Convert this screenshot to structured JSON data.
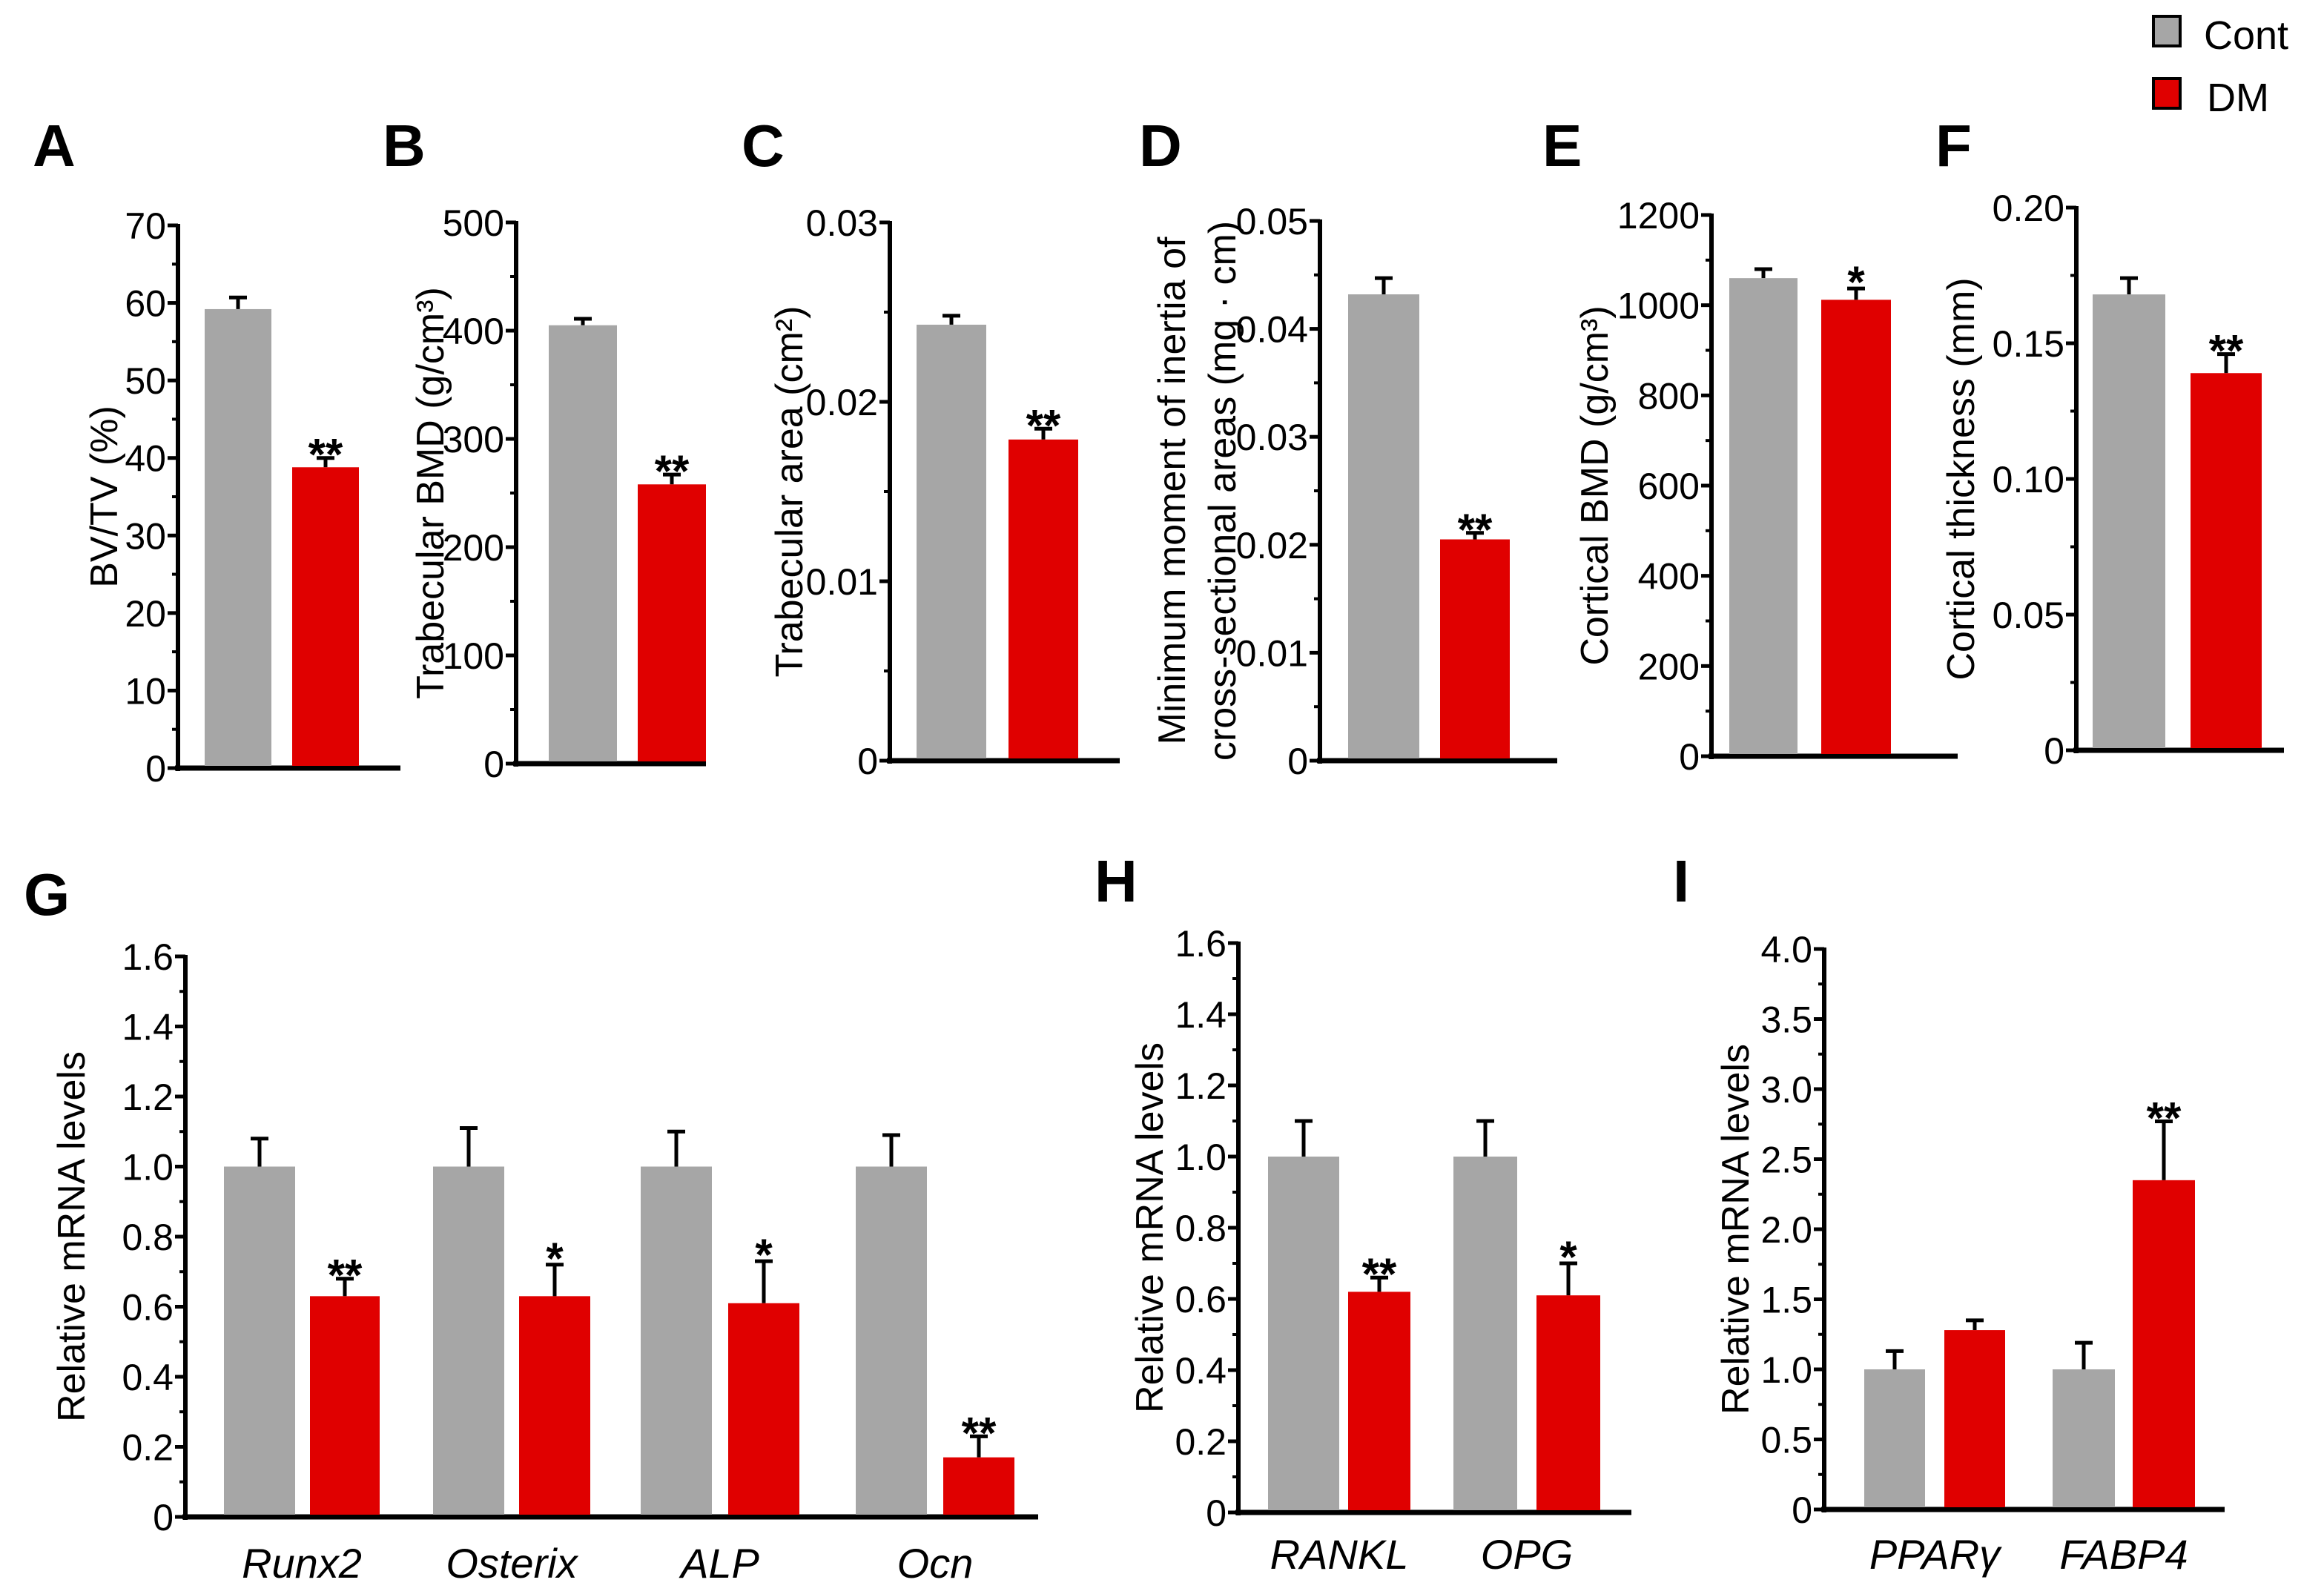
{
  "colors": {
    "cont": "#a6a6a6",
    "dm": "#e00000"
  },
  "legend": [
    {
      "label": "Cont",
      "color": "#a6a6a6"
    },
    {
      "label": "DM",
      "color": "#e00000"
    }
  ],
  "chart_data": [
    {
      "id": "A",
      "type": "bar",
      "ylabel": [
        "BV/TV (%)"
      ],
      "ylim": [
        0,
        70
      ],
      "ticks": [
        "0",
        "10",
        "20",
        "30",
        "40",
        "50",
        "60",
        "70"
      ],
      "tick_values": [
        0,
        10,
        20,
        30,
        40,
        50,
        60,
        70
      ],
      "categories": [
        ""
      ],
      "series": [
        {
          "name": "Cont",
          "values": [
            59.2
          ],
          "errors": [
            1.5
          ]
        },
        {
          "name": "DM",
          "values": [
            38.8
          ],
          "errors": [
            1.2
          ]
        }
      ],
      "significance": [
        [
          "",
          "**"
        ]
      ]
    },
    {
      "id": "B",
      "type": "bar",
      "ylabel": [
        "Trabecular BMD (g/cm³)"
      ],
      "ylim": [
        0,
        500
      ],
      "ticks": [
        "0",
        "100",
        "200",
        "300",
        "400",
        "500"
      ],
      "tick_values": [
        0,
        100,
        200,
        300,
        400,
        500
      ],
      "categories": [
        ""
      ],
      "series": [
        {
          "name": "Cont",
          "values": [
            405
          ],
          "errors": [
            6
          ]
        },
        {
          "name": "DM",
          "values": [
            258
          ],
          "errors": [
            9
          ]
        }
      ],
      "significance": [
        [
          "",
          "**"
        ]
      ]
    },
    {
      "id": "C",
      "type": "bar",
      "ylabel": [
        "Trabecular area (cm²)"
      ],
      "ylim": [
        0,
        0.03
      ],
      "ticks": [
        "0",
        "0.01",
        "0.02",
        "0.03"
      ],
      "tick_values": [
        0,
        0.01,
        0.02,
        0.03
      ],
      "categories": [
        ""
      ],
      "series": [
        {
          "name": "Cont",
          "values": [
            0.0243
          ],
          "errors": [
            0.0005
          ]
        },
        {
          "name": "DM",
          "values": [
            0.0179
          ],
          "errors": [
            0.0006
          ]
        }
      ],
      "significance": [
        [
          "",
          "**"
        ]
      ]
    },
    {
      "id": "D",
      "type": "bar",
      "ylabel": [
        "Minimum moment of inertia of",
        "cross-sectional areas (mg · cm)"
      ],
      "ylim": [
        0,
        0.05
      ],
      "ticks": [
        "0",
        "0.01",
        "0.02",
        "0.03",
        "0.04",
        "0.05"
      ],
      "tick_values": [
        0,
        0.01,
        0.02,
        0.03,
        0.04,
        0.05
      ],
      "categories": [
        ""
      ],
      "series": [
        {
          "name": "Cont",
          "values": [
            0.0432
          ],
          "errors": [
            0.0015
          ]
        },
        {
          "name": "DM",
          "values": [
            0.0205
          ],
          "errors": [
            0.0006
          ]
        }
      ],
      "significance": [
        [
          "",
          "**"
        ]
      ]
    },
    {
      "id": "E",
      "type": "bar",
      "ylabel": [
        "Cortical BMD (g/cm³)"
      ],
      "ylim": [
        0,
        1200
      ],
      "ticks": [
        "0",
        "200",
        "400",
        "600",
        "800",
        "1000",
        "1200"
      ],
      "tick_values": [
        0,
        200,
        400,
        600,
        800,
        1000,
        1200
      ],
      "categories": [
        ""
      ],
      "series": [
        {
          "name": "Cont",
          "values": [
            1060
          ],
          "errors": [
            20
          ]
        },
        {
          "name": "DM",
          "values": [
            1012
          ],
          "errors": [
            25
          ]
        }
      ],
      "significance": [
        [
          "",
          "*"
        ]
      ]
    },
    {
      "id": "F",
      "type": "bar",
      "ylabel": [
        "Cortical thickness (mm)"
      ],
      "ylim": [
        0,
        0.2
      ],
      "ticks": [
        "0",
        "0.05",
        "0.10",
        "0.15",
        "0.20"
      ],
      "tick_values": [
        0,
        0.05,
        0.1,
        0.15,
        0.2
      ],
      "categories": [
        ""
      ],
      "series": [
        {
          "name": "Cont",
          "values": [
            0.168
          ],
          "errors": [
            0.006
          ]
        },
        {
          "name": "DM",
          "values": [
            0.139
          ],
          "errors": [
            0.007
          ]
        }
      ],
      "significance": [
        [
          "",
          "**"
        ]
      ]
    },
    {
      "id": "G",
      "type": "bar",
      "ylabel": [
        "Relative mRNA levels"
      ],
      "ylim": [
        0,
        1.6
      ],
      "ticks": [
        "0",
        "0.2",
        "0.4",
        "0.6",
        "0.8",
        "1.0",
        "1.2",
        "1.4",
        "1.6"
      ],
      "tick_values": [
        0,
        0.2,
        0.4,
        0.6,
        0.8,
        1.0,
        1.2,
        1.4,
        1.6
      ],
      "categories": [
        "Runx2",
        "Osterix",
        "ALP",
        "Ocn"
      ],
      "series": [
        {
          "name": "Cont",
          "values": [
            1.0,
            1.0,
            1.0,
            1.0
          ],
          "errors": [
            0.08,
            0.11,
            0.1,
            0.09
          ]
        },
        {
          "name": "DM",
          "values": [
            0.63,
            0.63,
            0.61,
            0.17
          ],
          "errors": [
            0.05,
            0.09,
            0.12,
            0.06
          ]
        }
      ],
      "significance": [
        [
          "",
          "**"
        ],
        [
          "",
          "*"
        ],
        [
          "",
          "*"
        ],
        [
          "",
          "**"
        ]
      ]
    },
    {
      "id": "H",
      "type": "bar",
      "ylabel": [
        "Relative mRNA levels"
      ],
      "ylim": [
        0,
        1.6
      ],
      "ticks": [
        "0",
        "0.2",
        "0.4",
        "0.6",
        "0.8",
        "1.0",
        "1.2",
        "1.4",
        "1.6"
      ],
      "tick_values": [
        0,
        0.2,
        0.4,
        0.6,
        0.8,
        1.0,
        1.2,
        1.4,
        1.6
      ],
      "categories": [
        "RANKL",
        "OPG"
      ],
      "series": [
        {
          "name": "Cont",
          "values": [
            1.0,
            1.0
          ],
          "errors": [
            0.1,
            0.1
          ]
        },
        {
          "name": "DM",
          "values": [
            0.62,
            0.61
          ],
          "errors": [
            0.04,
            0.09
          ]
        }
      ],
      "significance": [
        [
          "",
          "**"
        ],
        [
          "",
          "*"
        ]
      ]
    },
    {
      "id": "I",
      "type": "bar",
      "ylabel": [
        "Relative mRNA levels"
      ],
      "ylim": [
        0,
        4.0
      ],
      "ticks": [
        "0",
        "0.5",
        "1.0",
        "1.5",
        "2.0",
        "2.5",
        "3.0",
        "3.5",
        "4.0"
      ],
      "tick_values": [
        0,
        0.5,
        1.0,
        1.5,
        2.0,
        2.5,
        3.0,
        3.5,
        4.0
      ],
      "categories": [
        "PPARγ",
        "FABP4"
      ],
      "series": [
        {
          "name": "Cont",
          "values": [
            1.0,
            1.0
          ],
          "errors": [
            0.13,
            0.19
          ]
        },
        {
          "name": "DM",
          "values": [
            1.28,
            2.35
          ],
          "errors": [
            0.07,
            0.42
          ]
        }
      ],
      "significance": [
        [
          "",
          ""
        ],
        [
          "",
          "**"
        ]
      ]
    }
  ]
}
